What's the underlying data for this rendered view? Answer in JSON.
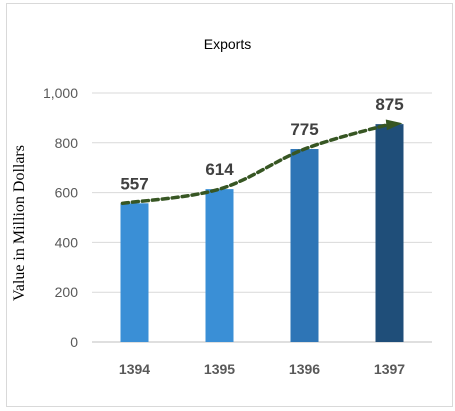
{
  "chart_data": {
    "type": "bar",
    "title": "Exports",
    "xlabel": "",
    "ylabel": "Value in Million Dollars",
    "categories": [
      "1394",
      "1395",
      "1396",
      "1397"
    ],
    "values": [
      557,
      614,
      775,
      875
    ],
    "data_labels": [
      "557",
      "614",
      "775",
      "875"
    ],
    "ylim": [
      0,
      1000
    ],
    "yticks": [
      0,
      200,
      400,
      600,
      800,
      1000
    ],
    "ytick_labels": [
      "0",
      "200",
      "400",
      "600",
      "800",
      "1,000"
    ],
    "grid": true,
    "legend": "none",
    "trendline": "dashed-curve",
    "colors": {
      "bars": [
        "#3a8fd6",
        "#3a8fd6",
        "#2e75b6",
        "#1f4e79"
      ],
      "trendline": "#375623",
      "grid": "#d9d9d9",
      "axis": "#bfbfbf"
    }
  }
}
